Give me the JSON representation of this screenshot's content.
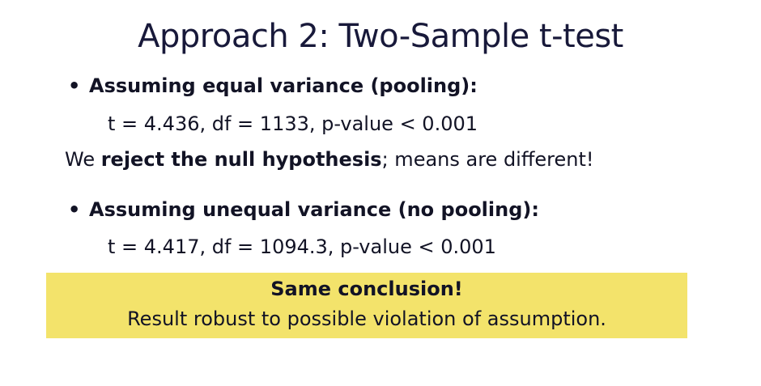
{
  "slide": {
    "title": "Approach 2: Two-Sample t-test",
    "bullet_1": {
      "marker": "•",
      "heading": "Assuming equal variance (pooling):",
      "stat": "t = 4.436, df = 1133, p-value < 0.001"
    },
    "conclusion": {
      "prefix": "We ",
      "emphasis": "reject the null hypothesis",
      "suffix": "; means are different!"
    },
    "bullet_2": {
      "marker": "•",
      "heading": "Assuming unequal variance (no pooling):",
      "stat": "t = 4.417, df = 1094.3, p-value < 0.001"
    },
    "highlight": {
      "heading": "Same conclusion!",
      "text": "Result robust to possible violation of assumption.",
      "background_color": "#f3e36b"
    }
  }
}
